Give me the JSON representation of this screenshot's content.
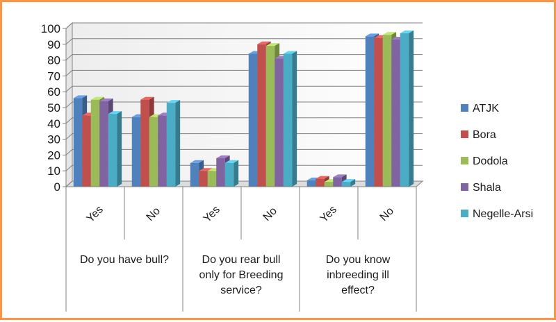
{
  "chart_data": {
    "type": "bar",
    "subtype": "clustered-3d",
    "categories": [
      "Yes",
      "No",
      "Yes",
      "No",
      "Yes",
      "No"
    ],
    "groups": [
      {
        "label_lines": [
          "Do you have bull?"
        ]
      },
      {
        "label_lines": [
          "Do you rear  bull",
          "only for Breeding",
          "service?"
        ]
      },
      {
        "label_lines": [
          "Do you know",
          "inbreeding ill",
          "effect?"
        ]
      }
    ],
    "series": [
      {
        "name": "ATJK",
        "color": "#4f81bd",
        "values": [
          56,
          44,
          15,
          84,
          4,
          95
        ]
      },
      {
        "name": "Bora",
        "color": "#c0504d",
        "values": [
          45,
          55,
          10,
          90,
          5,
          94
        ]
      },
      {
        "name": "Dodola",
        "color": "#9bbb59",
        "values": [
          55,
          44,
          10,
          89,
          3,
          96
        ]
      },
      {
        "name": "Shala",
        "color": "#8064a2",
        "values": [
          54,
          45,
          18,
          81,
          6,
          93
        ]
      },
      {
        "name": "Negelle-Arsi",
        "color": "#4bacc6",
        "values": [
          46,
          53,
          15,
          84,
          3,
          97
        ]
      }
    ],
    "ylim": [
      0,
      100
    ],
    "yticks": [
      0,
      10,
      20,
      30,
      40,
      50,
      60,
      70,
      80,
      90,
      100
    ],
    "grid": true,
    "legend_position": "right",
    "title": "",
    "xlabel": "",
    "ylabel": ""
  }
}
